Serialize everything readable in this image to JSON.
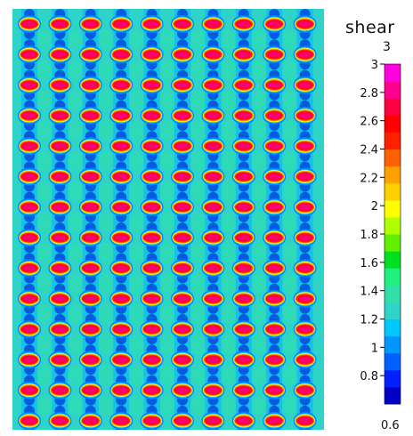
{
  "chart_data": {
    "type": "heatmap",
    "title": "shear",
    "field_component": "3",
    "colorbar": {
      "min": 0.6,
      "max": 3,
      "min_label": "0.6",
      "ticks": [
        "3",
        "2.8",
        "2.6",
        "2.4",
        "2.2",
        "2",
        "1.8",
        "1.6",
        "1.4",
        "1.2",
        "1",
        "0.8"
      ],
      "tick_values": [
        3,
        2.8,
        2.6,
        2.4,
        2.2,
        2,
        1.8,
        1.6,
        1.4,
        1.2,
        1,
        0.8
      ],
      "colors": [
        "#0000c8",
        "#0020ff",
        "#0060ff",
        "#0096ff",
        "#00c8ff",
        "#2fd3c8",
        "#30e0a8",
        "#20f080",
        "#00e020",
        "#60f000",
        "#b0ff00",
        "#ffff00",
        "#ffd000",
        "#ffa000",
        "#ff6000",
        "#ff2000",
        "#ff0000",
        "#ff0040",
        "#ff0090",
        "#ff00e0"
      ]
    },
    "pattern": {
      "columns": 10,
      "rows": 14,
      "inclusion_peak_value": 3.0,
      "background_value": 1.3,
      "band_value": 0.7
    }
  }
}
